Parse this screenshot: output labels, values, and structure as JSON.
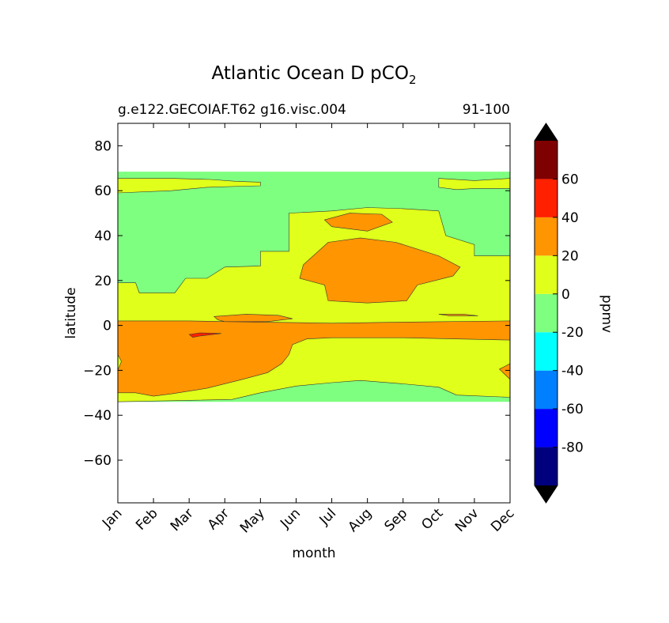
{
  "chart_data": {
    "type": "heatmap",
    "title_main": "Atlantic Ocean D pCO",
    "title_sub": "2",
    "subtitle_left": "g.e122.GECOIAF.T62 g16.visc.004",
    "subtitle_right": "91-100",
    "xlabel": "month",
    "ylabel": "latitude",
    "x_ticks": [
      "Jan",
      "Feb",
      "Mar",
      "Apr",
      "May",
      "Jun",
      "Jul",
      "Aug",
      "Sep",
      "Oct",
      "Nov",
      "Dec"
    ],
    "xlim": [
      1,
      12
    ],
    "y_ticks": [
      {
        "value": 80,
        "label": "80"
      },
      {
        "value": 60,
        "label": "60"
      },
      {
        "value": 40,
        "label": "40"
      },
      {
        "value": 20,
        "label": "20"
      },
      {
        "value": 0,
        "label": "0"
      },
      {
        "value": -20,
        "label": "−20"
      },
      {
        "value": -40,
        "label": "−40"
      },
      {
        "value": -60,
        "label": "−60"
      }
    ],
    "ylim": [
      -79,
      90
    ],
    "colorbar": {
      "label": "ppmv",
      "levels": [
        -100,
        -80,
        -60,
        -40,
        -20,
        0,
        20,
        40,
        60,
        80
      ],
      "colors": [
        "#00007f",
        "#0000ff",
        "#007fff",
        "#00ffff",
        "#7fff7f",
        "#e0ff1a",
        "#ff9500",
        "#ff2000",
        "#7f0000"
      ],
      "extend_colors": {
        "below": "#000000",
        "above": "#000000"
      },
      "tick_labels": [
        {
          "value": -80,
          "label": "-80"
        },
        {
          "value": -60,
          "label": "-60"
        },
        {
          "value": -40,
          "label": "-40"
        },
        {
          "value": -20,
          "label": "-20"
        },
        {
          "value": 0,
          "label": "0"
        },
        {
          "value": 20,
          "label": "20"
        },
        {
          "value": 40,
          "label": "40"
        },
        {
          "value": 60,
          "label": "60"
        }
      ]
    },
    "data_extent": {
      "lat_min": -34,
      "lat_max": 68.5
    },
    "regions": [
      {
        "level_bin": "-20 to 0",
        "color": "#7fff7f",
        "polygon": [
          [
            1,
            68.5
          ],
          [
            12,
            68.5
          ],
          [
            12,
            -34
          ],
          [
            1,
            -34
          ]
        ]
      },
      {
        "level_bin": "0 to 20",
        "color": "#e0ff1a",
        "polygon": [
          [
            1,
            65.5
          ],
          [
            2.5,
            65.5
          ],
          [
            3.6,
            65
          ],
          [
            4.3,
            64.2
          ],
          [
            5,
            63.8
          ],
          [
            5,
            62.2
          ],
          [
            4.5,
            62
          ],
          [
            3.5,
            61.5
          ],
          [
            2.5,
            60
          ],
          [
            1,
            59
          ],
          [
            1,
            19
          ],
          [
            1.5,
            19
          ],
          [
            1.6,
            14.5
          ],
          [
            2.6,
            14.5
          ],
          [
            2.9,
            21
          ],
          [
            3.5,
            21
          ],
          [
            4,
            26
          ],
          [
            5,
            26.5
          ],
          [
            5,
            33
          ],
          [
            5.8,
            33
          ],
          [
            5.8,
            50
          ],
          [
            7,
            51
          ],
          [
            8,
            52.5
          ],
          [
            9,
            52
          ],
          [
            10,
            51
          ],
          [
            10.2,
            40
          ],
          [
            11,
            36
          ],
          [
            11,
            31
          ],
          [
            12,
            31
          ],
          [
            12,
            -32
          ],
          [
            10.5,
            -31
          ],
          [
            10,
            -27.5
          ],
          [
            9,
            -26
          ],
          [
            7.8,
            -24.5
          ],
          [
            7,
            -25.5
          ],
          [
            6,
            -27
          ],
          [
            5,
            -30
          ],
          [
            4.2,
            -33
          ],
          [
            1,
            -34
          ]
        ]
      },
      {
        "level_bin": "0 to 20",
        "color": "#e0ff1a",
        "polygon": [
          [
            10,
            65.5
          ],
          [
            11,
            64.5
          ],
          [
            12,
            65.5
          ],
          [
            12,
            61
          ],
          [
            11,
            61
          ],
          [
            10.5,
            60.5
          ],
          [
            10,
            61.5
          ]
        ]
      },
      {
        "level_bin": "20 to 40",
        "color": "#ff9500",
        "polygon": [
          [
            1,
            2
          ],
          [
            3,
            2
          ],
          [
            5,
            1.5
          ],
          [
            7,
            1
          ],
          [
            9,
            1.5
          ],
          [
            12,
            2
          ],
          [
            12,
            -6.5
          ],
          [
            10.5,
            -6
          ],
          [
            9,
            -5.5
          ],
          [
            7,
            -5.5
          ],
          [
            6.3,
            -6
          ],
          [
            5.9,
            -8.5
          ],
          [
            5.8,
            -13
          ],
          [
            5.6,
            -17
          ],
          [
            5.2,
            -21
          ],
          [
            4.5,
            -24
          ],
          [
            3.5,
            -28
          ],
          [
            2.5,
            -30.5
          ],
          [
            2,
            -31.5
          ],
          [
            1.5,
            -30
          ],
          [
            1,
            -30
          ],
          [
            1,
            -20
          ],
          [
            1.1,
            -16
          ],
          [
            1,
            -13
          ]
        ]
      },
      {
        "level_bin": "20 to 40",
        "color": "#ff9500",
        "polygon": [
          [
            3.7,
            4
          ],
          [
            4.6,
            5
          ],
          [
            5.5,
            4.5
          ],
          [
            5.9,
            3
          ],
          [
            5.2,
            1.7
          ],
          [
            4,
            1.7
          ],
          [
            3.8,
            2.5
          ]
        ]
      },
      {
        "level_bin": "20 to 40",
        "color": "#ff9500",
        "polygon": [
          [
            6.9,
            37
          ],
          [
            7.8,
            39
          ],
          [
            8.8,
            37
          ],
          [
            10,
            31
          ],
          [
            10.6,
            26
          ],
          [
            10.4,
            22
          ],
          [
            9.4,
            18
          ],
          [
            9.1,
            11
          ],
          [
            8,
            10
          ],
          [
            6.9,
            11
          ],
          [
            6.8,
            18
          ],
          [
            6.1,
            21
          ],
          [
            6.2,
            27
          ]
        ]
      },
      {
        "level_bin": "20 to 40",
        "color": "#ff9500",
        "polygon": [
          [
            6.8,
            47
          ],
          [
            7.5,
            50
          ],
          [
            8.4,
            49.5
          ],
          [
            8.7,
            46
          ],
          [
            8,
            42
          ],
          [
            7,
            44
          ]
        ]
      },
      {
        "level_bin": "20 to 40",
        "color": "#ff9500",
        "polygon": [
          [
            12,
            -17
          ],
          [
            11.7,
            -19.5
          ],
          [
            12,
            -24
          ]
        ]
      },
      {
        "level_bin": "20 to 40",
        "color": "#ff9500",
        "polygon": [
          [
            10,
            5
          ],
          [
            10.7,
            5
          ],
          [
            11.1,
            4.3
          ],
          [
            10.3,
            4.3
          ]
        ]
      },
      {
        "level_bin": "40 to 60",
        "color": "#ff2000",
        "polygon": [
          [
            3,
            -4
          ],
          [
            3.3,
            -3.3
          ],
          [
            3.9,
            -3.6
          ],
          [
            3.3,
            -4.7
          ],
          [
            3.1,
            -5.3
          ]
        ]
      }
    ]
  }
}
